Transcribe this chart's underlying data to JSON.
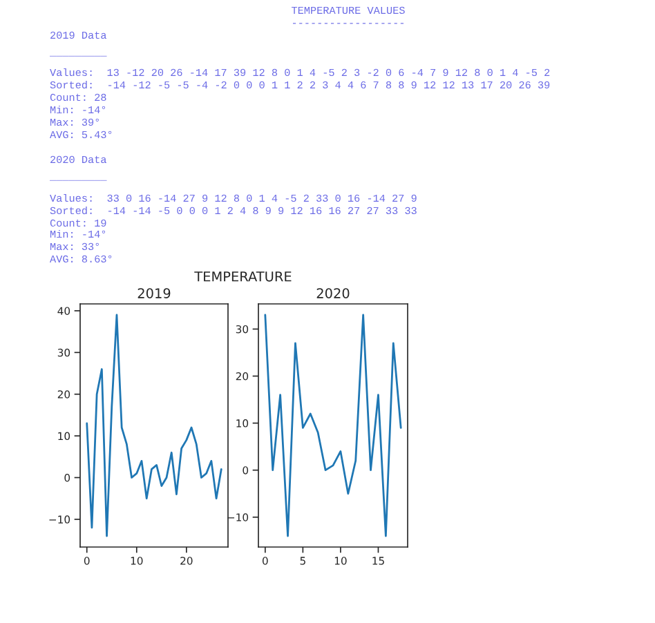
{
  "chart_data": [
    {
      "type": "other",
      "title": "TEMPERATURE VALUES",
      "subtitle": "TEMPERATURE",
      "annotations": [
        "------------------",
        "2019 Data",
        "_________",
        "Values:  13 -12 20 26 -14 17 39 12 8 0 1 4 -5 2 3 -2 0 6 -4 7 9 12 8 0 1 4 -5 2",
        "Sorted:  -14 -12 -5 -5 -4 -2 0 0 0 1 1 2 2 3 4 4 6 7 8 8 9 12 12 13 17 20 26 39",
        "Count: 28",
        "Min: -14°",
        "Max: 39°",
        "AVG: 5.43°",
        "2020 Data",
        "_________",
        "Values:  33 0 16 -14 27 9 12 8 0 1 4 -5 2 33 0 16 -14 27 9",
        "Sorted:  -14 -14 -5 0 0 0 1 2 4 8 9 9 12 16 16 27 27 33 33",
        "Count: 19",
        "Min: -14°",
        "Max: 33°",
        "AVG: 8.63°"
      ]
    },
    {
      "type": "line",
      "title": "2019",
      "x": [
        0,
        1,
        2,
        3,
        4,
        5,
        6,
        7,
        8,
        9,
        10,
        11,
        12,
        13,
        14,
        15,
        16,
        17,
        18,
        19,
        20,
        21,
        22,
        23,
        24,
        25,
        26,
        27
      ],
      "series": [
        {
          "color": "#1f77b4",
          "values": [
            13,
            -12,
            20,
            26,
            -14,
            17,
            39,
            12,
            8,
            0,
            1,
            4,
            -5,
            2,
            3,
            -2,
            0,
            6,
            -4,
            7,
            9,
            12,
            8,
            0,
            1,
            4,
            -5,
            2
          ]
        }
      ],
      "xlim": [
        -1.35,
        28.35
      ],
      "xticks": [
        0,
        10,
        20
      ],
      "ylim": [
        -16.65,
        41.65
      ],
      "yticks": [
        -10,
        0,
        10,
        20,
        30,
        40
      ]
    },
    {
      "type": "line",
      "title": "2020",
      "x": [
        0,
        1,
        2,
        3,
        4,
        5,
        6,
        7,
        8,
        9,
        10,
        11,
        12,
        13,
        14,
        15,
        16,
        17,
        18
      ],
      "series": [
        {
          "color": "#1f77b4",
          "values": [
            33,
            0,
            16,
            -14,
            27,
            9,
            12,
            8,
            0,
            1,
            4,
            -5,
            2,
            33,
            0,
            16,
            -14,
            27,
            9
          ]
        }
      ],
      "xlim": [
        -0.9,
        18.9
      ],
      "xticks": [
        0,
        5,
        10,
        15
      ],
      "ylim": [
        -16.35,
        35.35
      ],
      "yticks": [
        -10,
        0,
        10,
        20,
        30
      ]
    }
  ]
}
